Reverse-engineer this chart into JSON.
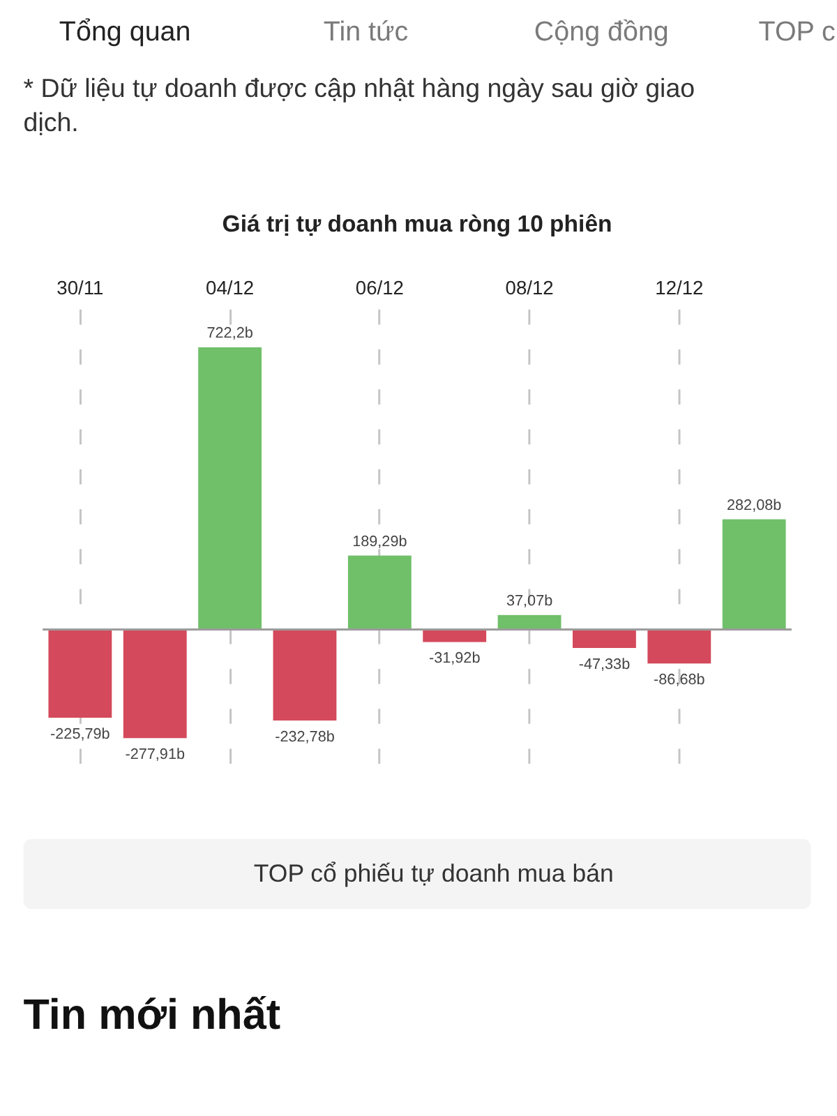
{
  "chart_data": {
    "type": "bar",
    "title": "Giá trị tự doanh mua ròng 10 phiên",
    "categories": [
      "30/11",
      null,
      "04/12",
      null,
      "06/12",
      null,
      "08/12",
      null,
      "12/12",
      null
    ],
    "values": [
      -225.79,
      -277.91,
      722.2,
      -232.78,
      189.29,
      -31.92,
      37.07,
      -47.33,
      -86.68,
      282.08
    ],
    "colors": [
      "#d4495b",
      "#d4495b",
      "#70bf69",
      "#d4495b",
      "#70bf69",
      "#d4495b",
      "#70bf69",
      "#d4495b",
      "#d4495b",
      "#70bf69"
    ],
    "value_labels": [
      "-225,79b",
      "-277,91b",
      "722,2b",
      "-232,78b",
      "189,29b",
      "-31,92b",
      "37,07b",
      "-47,33b",
      "-86,68b",
      "282,08b"
    ],
    "grid": "x",
    "annotations": [
      "Tổng quan",
      "Tin tức",
      "Cộng đồng",
      "TOP c",
      "* Dữ liệu tự doanh được cập nhật hàng ngày sau giờ giao dịch.",
      "TOP cổ phiếu tự doanh mua bán",
      "Tin mới nhất"
    ]
  }
}
